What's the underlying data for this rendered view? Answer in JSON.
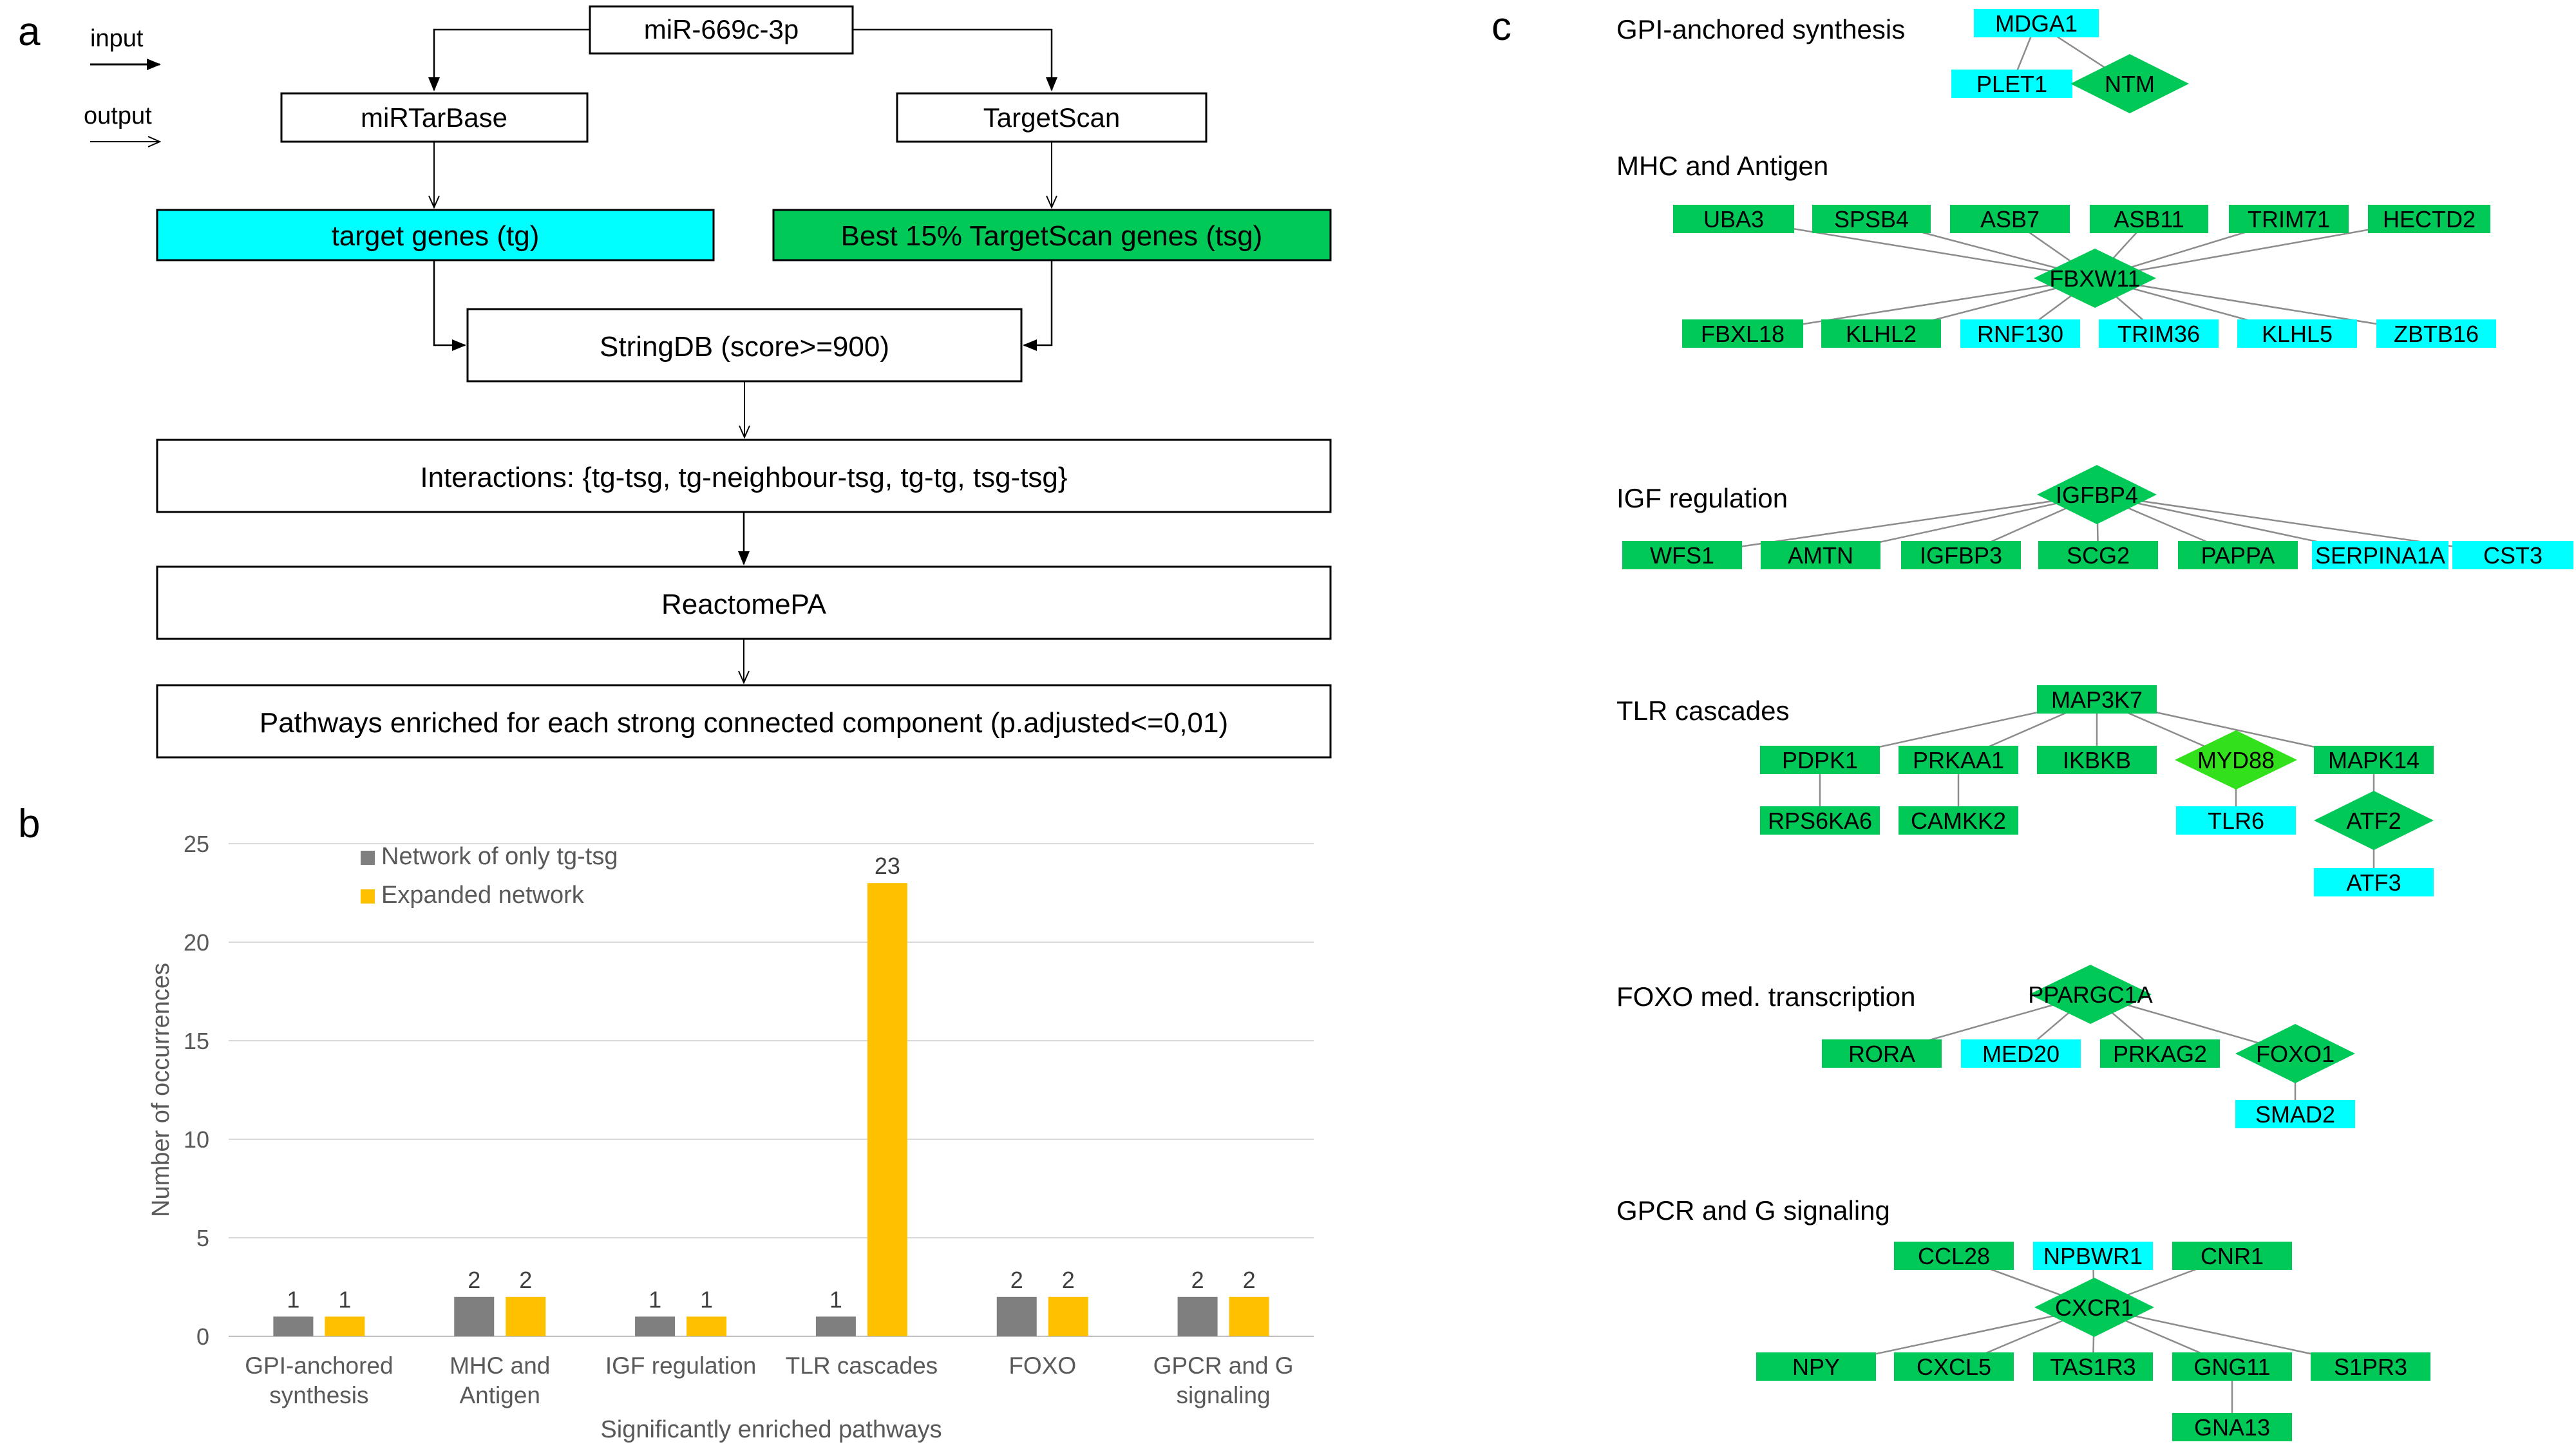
{
  "colors": {
    "cyan": "#00FFFF",
    "green": "#00C957",
    "bright_green": "#33E01C",
    "bar_gray": "#7F7F7F",
    "bar_orange": "#FFC000",
    "edge": "#8C8C8C"
  },
  "panel_a": {
    "label": "a",
    "legend_input": "input",
    "legend_output": "output",
    "mirna": "miR-669c-3p",
    "db1": "miRTarBase",
    "db2": "TargetScan",
    "tg": "target genes (tg)",
    "tsg": "Best 15% TargetScan genes (tsg)",
    "stringdb": "StringDB (score>=900)",
    "interactions": "Interactions: {tg-tsg, tg-neighbour-tsg, tg-tg, tsg-tsg}",
    "reactome": "ReactomePA",
    "pathways": "Pathways enriched for each strong connected component (p.adjusted<=0,01)"
  },
  "panel_b": {
    "label": "b",
    "chart_data": {
      "type": "bar",
      "categories": [
        [
          "GPI-anchored",
          "synthesis"
        ],
        [
          "MHC and",
          "Antigen"
        ],
        [
          "IGF regulation"
        ],
        [
          "TLR cascades"
        ],
        [
          "FOXO"
        ],
        [
          "GPCR and G",
          "signaling"
        ]
      ],
      "series": [
        {
          "name": "Network of only tg-tsg",
          "color": "#7F7F7F",
          "values": [
            1,
            2,
            1,
            1,
            2,
            2
          ]
        },
        {
          "name": "Expanded network",
          "color": "#FFC000",
          "values": [
            1,
            2,
            1,
            23,
            2,
            2
          ]
        }
      ],
      "xlabel": "Significantly enriched pathways",
      "ylabel": "Number of occurrences",
      "ylim": [
        0,
        25
      ],
      "yticks": [
        0,
        5,
        10,
        15,
        20,
        25
      ],
      "grid": true,
      "legend": "top-left"
    }
  },
  "panel_c": {
    "label": "c",
    "groups": [
      {
        "title": "GPI-anchored synthesis",
        "nodes": [
          {
            "name": "MDGA1",
            "type": "tg"
          },
          {
            "name": "PLET1",
            "type": "tg"
          },
          {
            "name": "NTM",
            "type": "tsg-hub"
          }
        ]
      },
      {
        "title": "MHC and Antigen",
        "nodes": [
          {
            "name": "UBA3",
            "type": "tsg"
          },
          {
            "name": "SPSB4",
            "type": "tsg"
          },
          {
            "name": "ASB7",
            "type": "tsg"
          },
          {
            "name": "ASB11",
            "type": "tsg"
          },
          {
            "name": "TRIM71",
            "type": "tsg"
          },
          {
            "name": "HECTD2",
            "type": "tsg"
          },
          {
            "name": "FBXW11",
            "type": "tsg-hub"
          },
          {
            "name": "FBXL18",
            "type": "tsg"
          },
          {
            "name": "KLHL2",
            "type": "tsg"
          },
          {
            "name": "RNF130",
            "type": "tg"
          },
          {
            "name": "TRIM36",
            "type": "tg"
          },
          {
            "name": "KLHL5",
            "type": "tg"
          },
          {
            "name": "ZBTB16",
            "type": "tg"
          }
        ]
      },
      {
        "title": "IGF regulation",
        "nodes": [
          {
            "name": "IGFBP4",
            "type": "tsg-hub"
          },
          {
            "name": "WFS1",
            "type": "tsg"
          },
          {
            "name": "AMTN",
            "type": "tsg"
          },
          {
            "name": "IGFBP3",
            "type": "tsg"
          },
          {
            "name": "SCG2",
            "type": "tsg"
          },
          {
            "name": "PAPPA",
            "type": "tsg"
          },
          {
            "name": "SERPINA1A",
            "type": "tg"
          },
          {
            "name": "CST3",
            "type": "tg"
          }
        ]
      },
      {
        "title": "TLR cascades",
        "nodes": [
          {
            "name": "MAP3K7",
            "type": "tsg"
          },
          {
            "name": "PDPK1",
            "type": "tsg"
          },
          {
            "name": "PRKAA1",
            "type": "tsg"
          },
          {
            "name": "IKBKB",
            "type": "tsg"
          },
          {
            "name": "MYD88",
            "type": "hub"
          },
          {
            "name": "MAPK14",
            "type": "tsg"
          },
          {
            "name": "RPS6KA6",
            "type": "tsg"
          },
          {
            "name": "CAMKK2",
            "type": "tsg"
          },
          {
            "name": "TLR6",
            "type": "tg"
          },
          {
            "name": "ATF2",
            "type": "tsg-hub"
          },
          {
            "name": "ATF3",
            "type": "tg"
          }
        ]
      },
      {
        "title": "FOXO med. transcription",
        "nodes": [
          {
            "name": "PPARGC1A",
            "type": "tsg-hub"
          },
          {
            "name": "RORA",
            "type": "tsg"
          },
          {
            "name": "MED20",
            "type": "tg"
          },
          {
            "name": "PRKAG2",
            "type": "tsg"
          },
          {
            "name": "FOXO1",
            "type": "tsg-hub"
          },
          {
            "name": "SMAD2",
            "type": "tg"
          }
        ]
      },
      {
        "title": "GPCR and G signaling",
        "nodes": [
          {
            "name": "CCL28",
            "type": "tsg"
          },
          {
            "name": "NPBWR1",
            "type": "tg"
          },
          {
            "name": "CNR1",
            "type": "tsg"
          },
          {
            "name": "CXCR1",
            "type": "tsg-hub"
          },
          {
            "name": "NPY",
            "type": "tsg"
          },
          {
            "name": "CXCL5",
            "type": "tsg"
          },
          {
            "name": "TAS1R3",
            "type": "tsg"
          },
          {
            "name": "GNG11",
            "type": "tsg"
          },
          {
            "name": "S1PR3",
            "type": "tsg"
          },
          {
            "name": "GNA13",
            "type": "tsg"
          }
        ]
      }
    ]
  }
}
